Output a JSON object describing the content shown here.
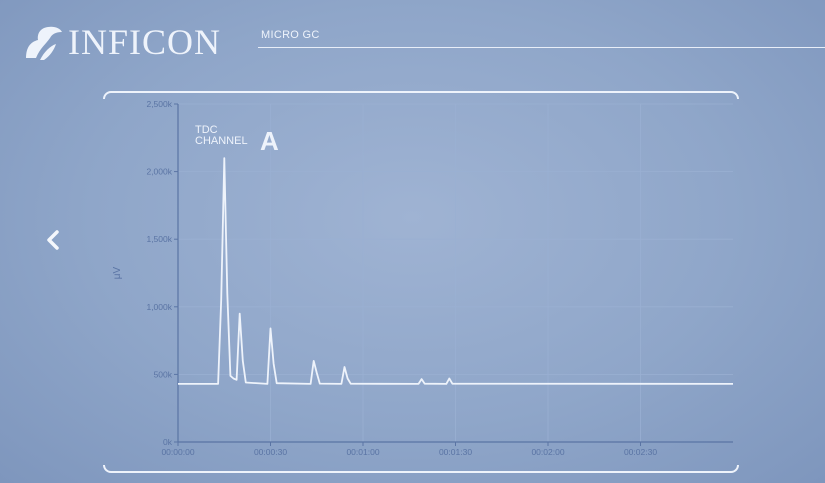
{
  "header": {
    "brand": "INFICON",
    "product": "MICRO GC"
  },
  "nav": {
    "back_icon": "chevron-left-icon"
  },
  "colors": {
    "background": "#8fa6c9",
    "foreground": "#eef3fb",
    "axis": "#5a74a4",
    "grid": "#9ab0d2"
  },
  "channel": {
    "type": "TDC",
    "label": "CHANNEL",
    "letter": "A"
  },
  "chart_data": {
    "type": "line",
    "ylabel": "μV",
    "xlabel": "",
    "yticks": [
      "0k",
      "500k",
      "1,000k",
      "1,500k",
      "2,000k",
      "2,500k"
    ],
    "xticks": [
      "00:00:00",
      "00:00:30",
      "00:01:00",
      "00:01:30",
      "00:02:00",
      "00:02:30"
    ],
    "xlim": [
      0,
      180
    ],
    "ylim": [
      0,
      2500
    ],
    "grid": true,
    "series": [
      {
        "x": [
          0,
          13,
          14,
          15,
          16,
          17,
          18,
          19,
          20,
          21,
          22,
          29,
          30,
          31,
          32,
          43,
          44,
          45,
          46,
          53,
          54,
          55,
          56,
          78,
          79,
          80,
          87,
          88,
          89,
          180
        ],
        "y": [
          430,
          430,
          1050,
          2100,
          1100,
          490,
          470,
          460,
          950,
          600,
          440,
          430,
          840,
          580,
          435,
          430,
          600,
          510,
          432,
          430,
          555,
          470,
          431,
          430,
          465,
          431,
          430,
          470,
          431,
          430
        ]
      }
    ]
  }
}
